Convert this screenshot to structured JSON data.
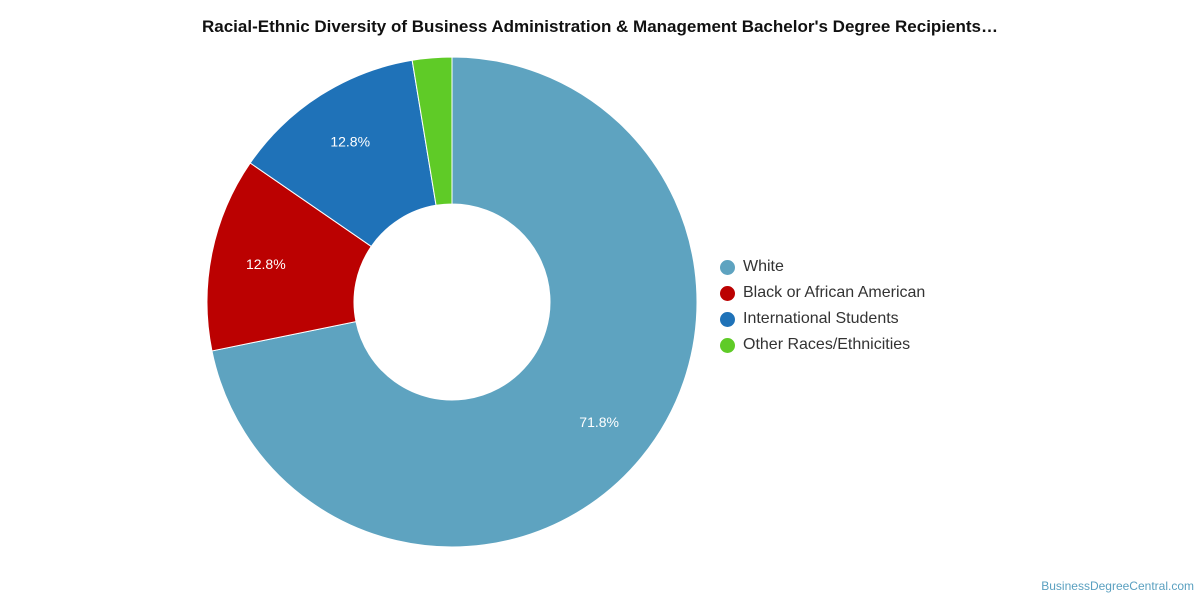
{
  "title": "Racial-Ethnic Diversity of Business Administration & Management Bachelor's Degree Recipients…",
  "credit": "BusinessDegreeCentral.com",
  "chart_data": {
    "type": "pie",
    "style": "donut",
    "title": "Racial-Ethnic Diversity of Business Administration & Management Bachelor's Degree Recipients…",
    "legend_position": "right",
    "slices": [
      {
        "label": "White",
        "value": 71.8,
        "value_label": "71.8%",
        "color": "#5ea3c0"
      },
      {
        "label": "Black or African American",
        "value": 12.8,
        "value_label": "12.8%",
        "color": "#bb0101"
      },
      {
        "label": "International Students",
        "value": 12.8,
        "value_label": "12.8%",
        "color": "#1f72b8"
      },
      {
        "label": "Other Races/Ethnicities",
        "value": 2.6,
        "value_label": "",
        "color": "#5fcb27"
      }
    ]
  }
}
